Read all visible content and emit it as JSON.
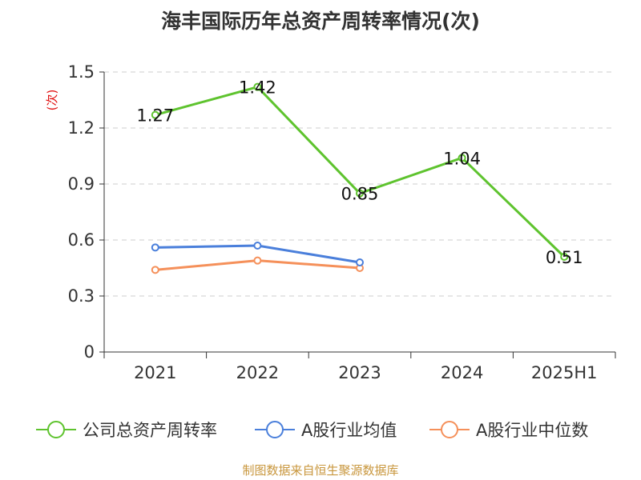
{
  "chart_data": {
    "type": "line",
    "title": "海丰国际历年总资产周转率情况(次)",
    "ylabel": "(次)",
    "xlabel": "",
    "categories": [
      "2021",
      "2022",
      "2023",
      "2024",
      "2025H1"
    ],
    "ylim": [
      0,
      1.5
    ],
    "yticks": [
      "0",
      "0.3",
      "0.6",
      "0.9",
      "1.2",
      "1.5"
    ],
    "ytick_values": [
      0,
      0.3,
      0.6,
      0.9,
      1.2,
      1.5
    ],
    "grid": true,
    "legend_position": "bottom",
    "series": [
      {
        "name": "公司总资产周转率",
        "color": "#5ec32e",
        "values": [
          1.27,
          1.42,
          0.85,
          1.04,
          0.51
        ],
        "labels": [
          "1.27",
          "1.42",
          "0.85",
          "1.04",
          "0.51"
        ]
      },
      {
        "name": "A股行业均值",
        "color": "#4a7fdb",
        "values": [
          0.56,
          0.57,
          0.48,
          null,
          null
        ]
      },
      {
        "name": "A股行业中位数",
        "color": "#f5905a",
        "values": [
          0.44,
          0.49,
          0.45,
          null,
          null
        ]
      }
    ],
    "source": "制图数据来自恒生聚源数据库"
  }
}
